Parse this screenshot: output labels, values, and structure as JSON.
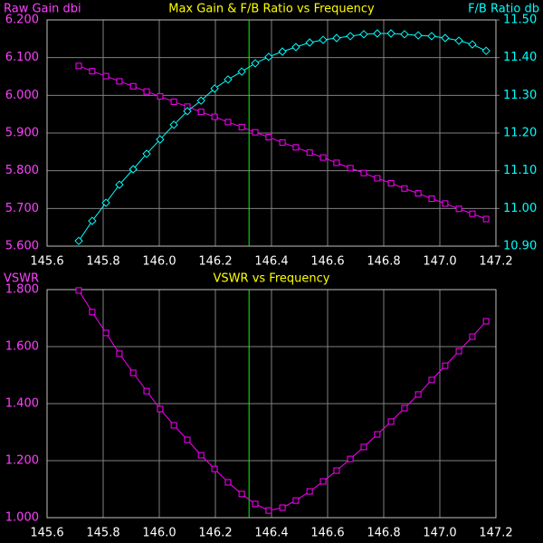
{
  "chart_data": [
    {
      "type": "line",
      "title": "Max Gain & F/B Ratio vs Frequency",
      "ylabel": "Raw Gain dbi",
      "y2label": "F/B Ratio db",
      "x": [
        145.713,
        145.761,
        145.81,
        145.858,
        145.907,
        145.955,
        146.003,
        146.052,
        146.1,
        146.149,
        146.197,
        146.245,
        146.294,
        146.342,
        146.39,
        146.439,
        146.487,
        146.536,
        146.584,
        146.632,
        146.681,
        146.729,
        146.777,
        146.826,
        146.874,
        146.923,
        146.971,
        147.019,
        147.068,
        147.116,
        147.165
      ],
      "series": [
        {
          "name": "Raw Gain dbi",
          "color": "#ff00ff",
          "marker": "square",
          "values": [
            6.078,
            6.064,
            6.051,
            6.037,
            6.024,
            6.01,
            5.997,
            5.983,
            5.97,
            5.956,
            5.943,
            5.929,
            5.916,
            5.902,
            5.889,
            5.875,
            5.862,
            5.848,
            5.835,
            5.821,
            5.807,
            5.794,
            5.78,
            5.767,
            5.753,
            5.74,
            5.726,
            5.713,
            5.699,
            5.686,
            5.672
          ]
        },
        {
          "name": "F/B Ratio db",
          "color": "#00ffff",
          "marker": "diamond",
          "axis": "y2",
          "values": [
            10.914,
            10.967,
            11.015,
            11.063,
            11.104,
            11.145,
            11.183,
            11.222,
            11.258,
            11.286,
            11.318,
            11.342,
            11.363,
            11.385,
            11.402,
            11.416,
            11.428,
            11.44,
            11.447,
            11.452,
            11.457,
            11.462,
            11.464,
            11.464,
            11.462,
            11.459,
            11.457,
            11.452,
            11.445,
            11.435,
            11.418
          ]
        }
      ],
      "xlim": [
        145.6,
        147.2
      ],
      "xticks": [
        145.6,
        145.8,
        {
          "value": 146,
          "label": "146.0"
        },
        146.2,
        146.4,
        146.6,
        146.8,
        {
          "value": 147,
          "label": "147.0"
        },
        147.2
      ],
      "ylim": [
        5.6,
        6.2
      ],
      "yticks": [
        {
          "value": 5.6,
          "label": "5.600"
        },
        {
          "value": 5.7,
          "label": "5.700"
        },
        {
          "value": 5.8,
          "label": "5.800"
        },
        {
          "value": 5.9,
          "label": "5.900"
        },
        {
          "value": 6,
          "label": "6.000"
        },
        {
          "value": 6.1,
          "label": "6.100"
        },
        {
          "value": 6.2,
          "label": "6.200"
        }
      ],
      "y2lim": [
        10.9,
        11.5
      ],
      "y2ticks": [
        {
          "value": 10.9,
          "label": "10.90"
        },
        {
          "value": 11,
          "label": "11.00"
        },
        {
          "value": 11.1,
          "label": "11.10"
        },
        {
          "value": 11.2,
          "label": "11.20"
        },
        {
          "value": 11.3,
          "label": "11.30"
        },
        {
          "value": 11.4,
          "label": "11.40"
        },
        {
          "value": 11.5,
          "label": "11.50"
        }
      ],
      "vline": 146.32,
      "vline_color": "#00ff00",
      "grid": true
    },
    {
      "type": "line",
      "title": "VSWR vs Frequency",
      "ylabel": "VSWR",
      "x": [
        145.713,
        145.761,
        145.81,
        145.858,
        145.907,
        145.955,
        146.003,
        146.052,
        146.1,
        146.149,
        146.197,
        146.245,
        146.294,
        146.342,
        146.39,
        146.439,
        146.487,
        146.536,
        146.584,
        146.632,
        146.681,
        146.729,
        146.777,
        146.826,
        146.874,
        146.923,
        146.971,
        147.019,
        147.068,
        147.116,
        147.165
      ],
      "series": [
        {
          "name": "VSWR",
          "color": "#ff00ff",
          "marker": "square",
          "values": [
            1.797,
            1.721,
            1.648,
            1.575,
            1.508,
            1.444,
            1.381,
            1.324,
            1.273,
            1.219,
            1.171,
            1.124,
            1.083,
            1.048,
            1.025,
            1.035,
            1.06,
            1.092,
            1.127,
            1.165,
            1.206,
            1.248,
            1.292,
            1.337,
            1.384,
            1.432,
            1.483,
            1.533,
            1.584,
            1.635,
            1.689
          ]
        }
      ],
      "xlim": [
        145.6,
        147.2
      ],
      "xticks": [
        145.6,
        145.8,
        {
          "value": 146,
          "label": "146.0"
        },
        146.2,
        146.4,
        146.6,
        146.8,
        {
          "value": 147,
          "label": "147.0"
        },
        147.2
      ],
      "ylim": [
        1,
        1.8
      ],
      "yticks": [
        {
          "value": 1,
          "label": "1.000"
        },
        {
          "value": 1.2,
          "label": "1.200"
        },
        {
          "value": 1.4,
          "label": "1.400"
        },
        {
          "value": 1.6,
          "label": "1.600"
        },
        {
          "value": 1.8,
          "label": "1.800"
        }
      ],
      "vline": 146.32,
      "vline_color": "#00ff00",
      "grid": true
    }
  ]
}
